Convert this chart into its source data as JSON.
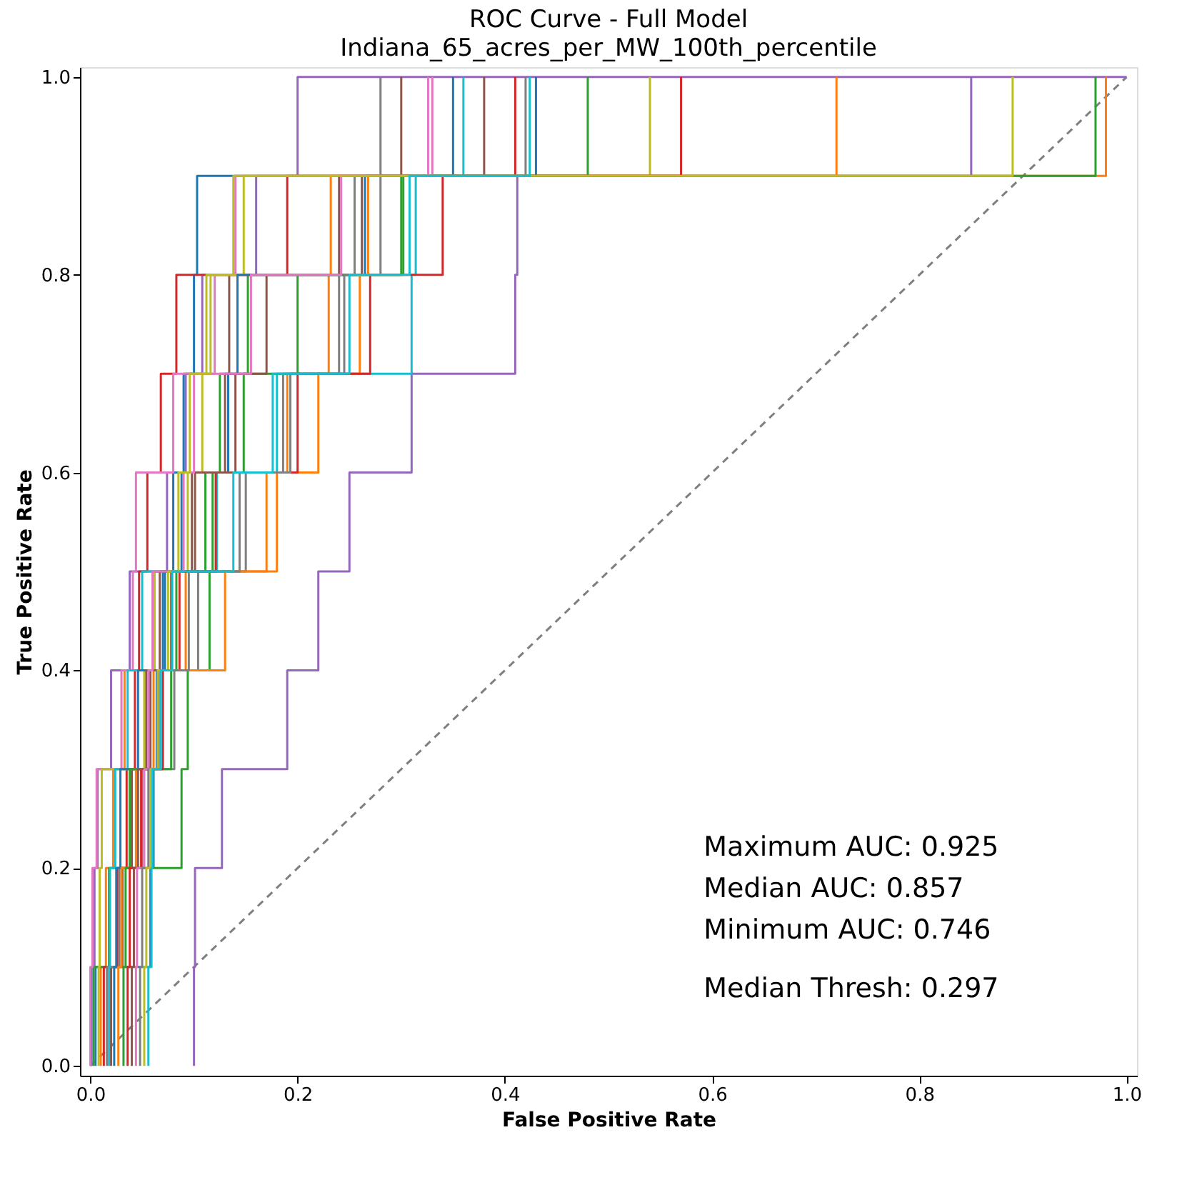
{
  "chart_data": {
    "type": "step",
    "title": "ROC Curve - Full Model",
    "subtitle": "Indiana_65_acres_per_MW_100th_percentile",
    "xlabel": "False Positive Rate",
    "ylabel": "True Positive Rate",
    "xlim": [
      -0.01,
      1.01
    ],
    "ylim": [
      -0.01,
      1.01
    ],
    "xticks": [
      {
        "value": 0,
        "label": "0.0"
      },
      {
        "value": 0.2,
        "label": "0.2"
      },
      {
        "value": 0.4,
        "label": "0.4"
      },
      {
        "value": 0.6,
        "label": "0.6"
      },
      {
        "value": 0.8,
        "label": "0.8"
      },
      {
        "value": 1,
        "label": "1.0"
      }
    ],
    "yticks": [
      {
        "value": 0,
        "label": "0.0"
      },
      {
        "value": 0.2,
        "label": "0.2"
      },
      {
        "value": 0.4,
        "label": "0.4"
      },
      {
        "value": 0.6,
        "label": "0.6"
      },
      {
        "value": 0.8,
        "label": "0.8"
      },
      {
        "value": 1,
        "label": "1.0"
      }
    ],
    "grid": false,
    "marker": "none",
    "annotations": [
      "Maximum AUC: 0.925",
      "Median AUC: 0.857",
      "Minimum AUC: 0.746",
      "Median Thresh: 0.297"
    ],
    "series": [
      {
        "type": "line",
        "line_style": "dashed",
        "color": "#7f7f7f",
        "x": [
          0,
          1
        ],
        "values": [
          0,
          1
        ]
      },
      {
        "color": "#9467bd",
        "x": [
          0.001,
          0.001,
          0.004,
          0.007,
          0.02,
          0.038,
          0.074,
          0.092,
          0.108,
          0.16,
          0.2,
          1
        ],
        "values": [
          0,
          0.1,
          0.2,
          0.3,
          0.4,
          0.5,
          0.6,
          0.7,
          0.8,
          0.9,
          1,
          1
        ]
      },
      {
        "color": "#1f77b4",
        "x": [
          0.005,
          0.005,
          0.058,
          0.061,
          0.064,
          0.07,
          0.08,
          0.09,
          0.1,
          0.103,
          0.35
        ],
        "values": [
          0,
          0.1,
          0.2,
          0.3,
          0.4,
          0.5,
          0.6,
          0.7,
          0.8,
          0.9,
          1
        ]
      },
      {
        "color": "#ff7f0e",
        "x": [
          0.01,
          0.01,
          0.015,
          0.022,
          0.033,
          0.092,
          0.17,
          0.19,
          0.23,
          0.232,
          0.98
        ],
        "values": [
          0,
          0.1,
          0.2,
          0.3,
          0.4,
          0.5,
          0.6,
          0.7,
          0.8,
          0.9,
          1
        ]
      },
      {
        "color": "#2ca02c",
        "x": [
          0.003,
          0.003,
          0.018,
          0.088,
          0.094,
          0.115,
          0.118,
          0.125,
          0.152,
          0.3,
          0.97
        ],
        "values": [
          0,
          0.1,
          0.2,
          0.3,
          0.4,
          0.5,
          0.6,
          0.7,
          0.8,
          0.9,
          1
        ]
      },
      {
        "color": "#d62728",
        "x": [
          0.013,
          0.013,
          0.026,
          0.035,
          0.043,
          0.047,
          0.055,
          0.068,
          0.083,
          0.19,
          0.41
        ],
        "values": [
          0,
          0.1,
          0.2,
          0.3,
          0.4,
          0.5,
          0.6,
          0.7,
          0.8,
          0.9,
          1
        ]
      },
      {
        "color": "#9467bd",
        "x": [
          0.1,
          0.1,
          0.101,
          0.127,
          0.19,
          0.22,
          0.25,
          0.31,
          0.41,
          0.412,
          0.85
        ],
        "values": [
          0,
          0.1,
          0.2,
          0.3,
          0.4,
          0.5,
          0.6,
          0.7,
          0.8,
          0.9,
          1
        ]
      },
      {
        "color": "#8c564b",
        "x": [
          0.02,
          0.02,
          0.031,
          0.04,
          0.058,
          0.078,
          0.098,
          0.13,
          0.134,
          0.262,
          0.3
        ],
        "values": [
          0,
          0.1,
          0.2,
          0.3,
          0.4,
          0.5,
          0.6,
          0.7,
          0.8,
          0.9,
          1
        ]
      },
      {
        "color": "#e377c2",
        "x": [
          0,
          0,
          0.002,
          0.006,
          0.03,
          0.041,
          0.044,
          0.08,
          0.12,
          0.14,
          0.33
        ],
        "values": [
          0,
          0.1,
          0.2,
          0.3,
          0.4,
          0.5,
          0.6,
          0.7,
          0.8,
          0.9,
          1
        ]
      },
      {
        "color": "#7f7f7f",
        "x": [
          0.016,
          0.016,
          0.028,
          0.05,
          0.081,
          0.104,
          0.15,
          0.186,
          0.24,
          0.255,
          0.28
        ],
        "values": [
          0,
          0.1,
          0.2,
          0.3,
          0.4,
          0.5,
          0.6,
          0.7,
          0.8,
          0.9,
          1
        ]
      },
      {
        "color": "#bcbd22",
        "x": [
          0.008,
          0.008,
          0.009,
          0.011,
          0.052,
          0.062,
          0.094,
          0.108,
          0.112,
          0.148,
          0.54
        ],
        "values": [
          0,
          0.1,
          0.2,
          0.3,
          0.4,
          0.5,
          0.6,
          0.7,
          0.8,
          0.9,
          1
        ]
      },
      {
        "color": "#17becf",
        "x": [
          0.018,
          0.018,
          0.019,
          0.024,
          0.036,
          0.05,
          0.122,
          0.18,
          0.31,
          0.314,
          0.36
        ],
        "values": [
          0,
          0.1,
          0.2,
          0.3,
          0.4,
          0.5,
          0.6,
          0.7,
          0.8,
          0.9,
          1
        ]
      },
      {
        "color": "#1f77b4",
        "x": [
          0.023,
          0.023,
          0.025,
          0.029,
          0.046,
          0.072,
          0.088,
          0.133,
          0.142,
          0.265,
          0.43
        ],
        "values": [
          0,
          0.1,
          0.2,
          0.3,
          0.4,
          0.5,
          0.6,
          0.7,
          0.8,
          0.9,
          1
        ]
      },
      {
        "color": "#ff7f0e",
        "x": [
          0.027,
          0.027,
          0.03,
          0.044,
          0.061,
          0.13,
          0.18,
          0.22,
          0.26,
          0.268,
          0.72
        ],
        "values": [
          0,
          0.1,
          0.2,
          0.3,
          0.4,
          0.5,
          0.6,
          0.7,
          0.8,
          0.9,
          1
        ]
      },
      {
        "color": "#2ca02c",
        "x": [
          0.032,
          0.032,
          0.034,
          0.038,
          0.078,
          0.083,
          0.111,
          0.148,
          0.2,
          0.302,
          0.48
        ],
        "values": [
          0,
          0.1,
          0.2,
          0.3,
          0.4,
          0.5,
          0.6,
          0.7,
          0.8,
          0.9,
          1
        ]
      },
      {
        "color": "#d62728",
        "x": [
          0.036,
          0.036,
          0.038,
          0.049,
          0.07,
          0.086,
          0.121,
          0.2,
          0.27,
          0.34,
          0.57
        ],
        "values": [
          0,
          0.1,
          0.2,
          0.3,
          0.4,
          0.5,
          0.6,
          0.7,
          0.8,
          0.9,
          1
        ]
      },
      {
        "color": "#8c564b",
        "x": [
          0.04,
          0.04,
          0.042,
          0.046,
          0.054,
          0.067,
          0.101,
          0.14,
          0.17,
          0.24,
          0.38
        ],
        "values": [
          0,
          0.1,
          0.2,
          0.3,
          0.4,
          0.5,
          0.6,
          0.7,
          0.8,
          0.9,
          1
        ]
      },
      {
        "color": "#e377c2",
        "x": [
          0.044,
          0.044,
          0.045,
          0.052,
          0.056,
          0.06,
          0.09,
          0.1,
          0.155,
          0.242,
          0.326
        ],
        "values": [
          0,
          0.1,
          0.2,
          0.3,
          0.4,
          0.5,
          0.6,
          0.7,
          0.8,
          0.9,
          1
        ]
      },
      {
        "color": "#7f7f7f",
        "x": [
          0.048,
          0.048,
          0.05,
          0.056,
          0.066,
          0.095,
          0.144,
          0.193,
          0.245,
          0.28,
          0.42
        ],
        "values": [
          0,
          0.1,
          0.2,
          0.3,
          0.4,
          0.5,
          0.6,
          0.7,
          0.8,
          0.9,
          1
        ]
      },
      {
        "color": "#bcbd22",
        "x": [
          0.052,
          0.052,
          0.054,
          0.058,
          0.065,
          0.075,
          0.085,
          0.096,
          0.116,
          0.138,
          0.89
        ],
        "values": [
          0,
          0.1,
          0.2,
          0.3,
          0.4,
          0.5,
          0.6,
          0.7,
          0.8,
          0.9,
          1
        ]
      },
      {
        "color": "#17becf",
        "x": [
          0.056,
          0.056,
          0.059,
          0.06,
          0.068,
          0.079,
          0.138,
          0.176,
          0.25,
          0.308,
          0.424
        ],
        "values": [
          0,
          0.1,
          0.2,
          0.3,
          0.4,
          0.5,
          0.6,
          0.7,
          0.8,
          0.9,
          1
        ]
      }
    ]
  }
}
